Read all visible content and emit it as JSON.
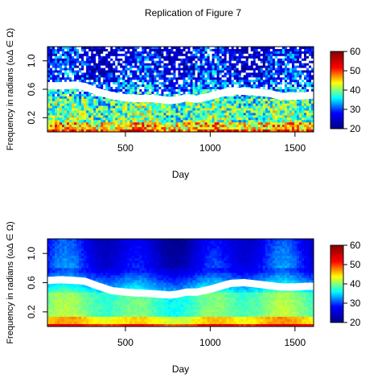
{
  "title": "Replication of Figure 7",
  "chart_data": [
    {
      "type": "heatmap",
      "panel": "top",
      "xlabel": "Day",
      "ylabel": "Frequency in radians (ωΔ ∈ Ω)",
      "xlim": [
        40,
        1610
      ],
      "ylim": [
        0,
        1.2
      ],
      "x_ticks": [
        500,
        1000,
        1500
      ],
      "y_ticks": [
        0.2,
        0.6,
        1.0
      ],
      "colorbar": {
        "range": [
          20,
          60
        ],
        "ticks": [
          20,
          30,
          40,
          50,
          60
        ],
        "colors": [
          "#00008B",
          "#0000FF",
          "#00FFFF",
          "#FFFF00",
          "#FF0000",
          "#8B0000"
        ]
      },
      "texture": "noisy",
      "ridge": {
        "x": [
          40,
          120,
          200,
          260,
          330,
          420,
          500,
          560,
          650,
          700,
          760,
          800,
          860,
          920,
          1000,
          1060,
          1120,
          1200,
          1280,
          1350,
          1420,
          1500,
          1560,
          1610
        ],
        "y": [
          0.65,
          0.65,
          0.66,
          0.64,
          0.57,
          0.51,
          0.48,
          0.47,
          0.47,
          0.46,
          0.44,
          0.45,
          0.48,
          0.46,
          0.5,
          0.54,
          0.58,
          0.57,
          0.56,
          0.54,
          0.5,
          0.5,
          0.51,
          0.52
        ]
      }
    },
    {
      "type": "heatmap",
      "panel": "bottom",
      "xlabel": "Day",
      "ylabel": "Frequency in radians (ωΔ ∈ Ω)",
      "xlim": [
        40,
        1610
      ],
      "ylim": [
        0,
        1.2
      ],
      "x_ticks": [
        500,
        1000,
        1500
      ],
      "y_ticks": [
        0.2,
        0.6,
        1.0
      ],
      "colorbar": {
        "range": [
          20,
          60
        ],
        "ticks": [
          20,
          30,
          40,
          50,
          60
        ],
        "colors": [
          "#00008B",
          "#0000FF",
          "#00FFFF",
          "#FFFF00",
          "#FF0000",
          "#8B0000"
        ]
      },
      "texture": "smooth",
      "ridge": {
        "x": [
          40,
          120,
          200,
          260,
          330,
          420,
          500,
          560,
          650,
          700,
          760,
          800,
          860,
          920,
          1000,
          1060,
          1120,
          1200,
          1280,
          1350,
          1420,
          1500,
          1560,
          1610
        ],
        "y": [
          0.63,
          0.64,
          0.63,
          0.62,
          0.56,
          0.49,
          0.47,
          0.46,
          0.45,
          0.44,
          0.43,
          0.44,
          0.47,
          0.47,
          0.51,
          0.55,
          0.59,
          0.6,
          0.58,
          0.56,
          0.54,
          0.54,
          0.55,
          0.55
        ]
      }
    }
  ]
}
